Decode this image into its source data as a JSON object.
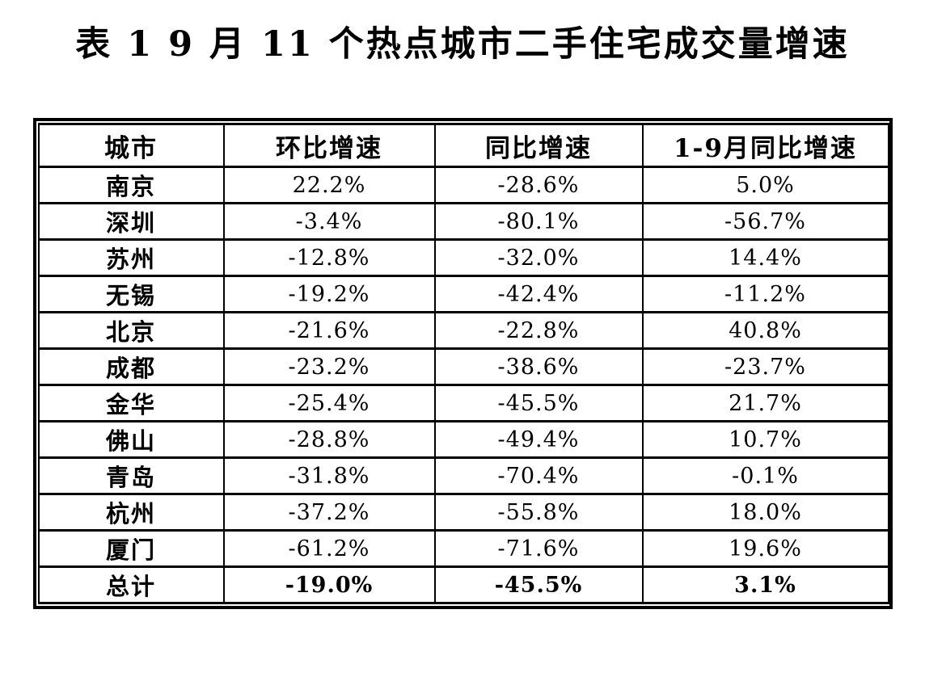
{
  "title": "表 1  9 月 11 个热点城市二手住宅成交量增速",
  "table": {
    "headers": [
      "城市",
      "环比增速",
      "同比增速",
      "1-9月同比增速"
    ],
    "rows": [
      [
        "南京",
        "22.2%",
        "-28.6%",
        "5.0%"
      ],
      [
        "深圳",
        "-3.4%",
        "-80.1%",
        "-56.7%"
      ],
      [
        "苏州",
        "-12.8%",
        "-32.0%",
        "14.4%"
      ],
      [
        "无锡",
        "-19.2%",
        "-42.4%",
        "-11.2%"
      ],
      [
        "北京",
        "-21.6%",
        "-22.8%",
        "40.8%"
      ],
      [
        "成都",
        "-23.2%",
        "-38.6%",
        "-23.7%"
      ],
      [
        "金华",
        "-25.4%",
        "-45.5%",
        "21.7%"
      ],
      [
        "佛山",
        "-28.8%",
        "-49.4%",
        "10.7%"
      ],
      [
        "青岛",
        "-31.8%",
        "-70.4%",
        "-0.1%"
      ],
      [
        "杭州",
        "-37.2%",
        "-55.8%",
        "18.0%"
      ],
      [
        "厦门",
        "-61.2%",
        "-71.6%",
        "19.6%"
      ],
      [
        "总计",
        "-19.0%",
        "-45.5%",
        "3.1%"
      ]
    ]
  }
}
